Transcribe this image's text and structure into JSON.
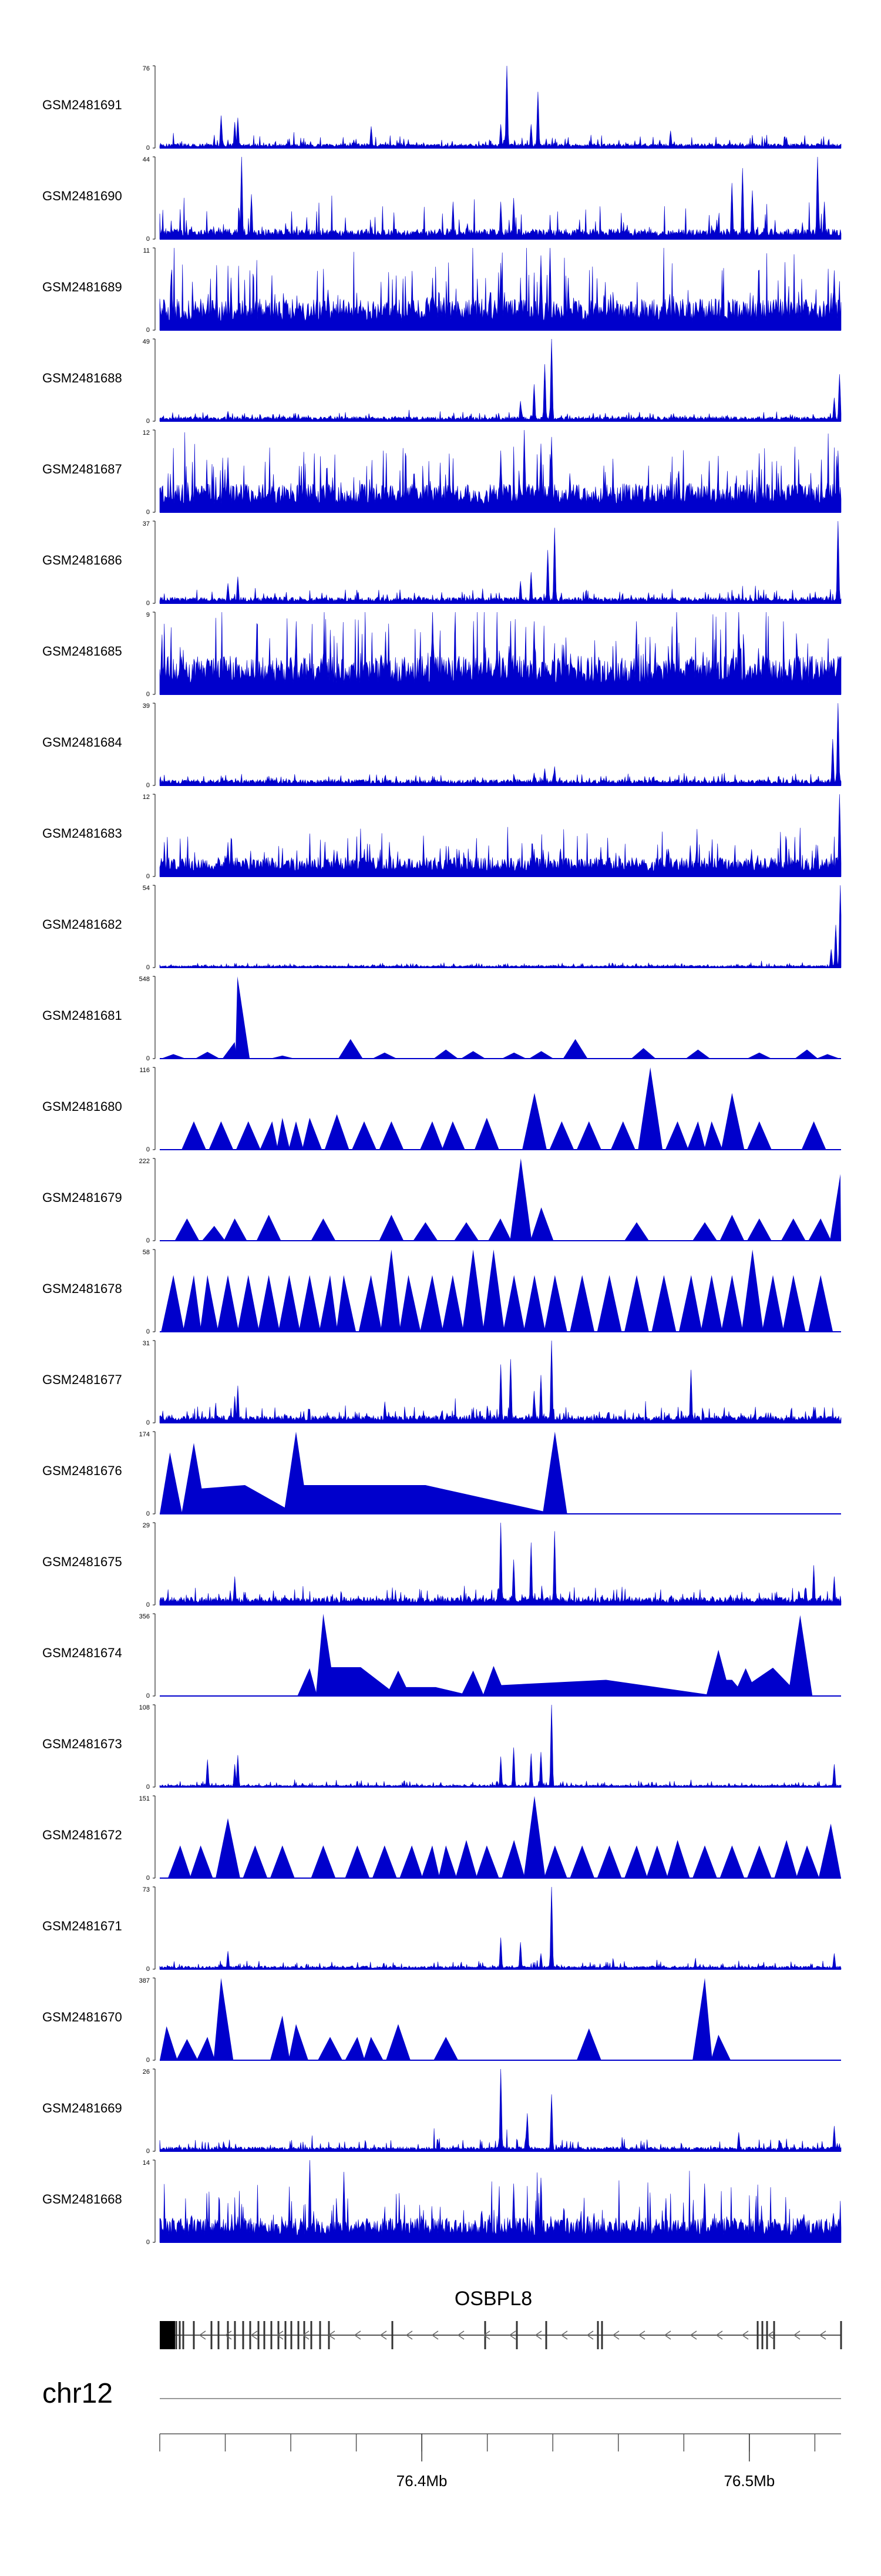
{
  "chart_data": {
    "type": "area",
    "genome": {
      "chromosome": "chr12",
      "gene": "OSBPL8",
      "axis_ticks": [
        "76.4Mb",
        "76.5Mb"
      ],
      "tick_values_mb": [
        76.4,
        76.5
      ],
      "x_range_mb": [
        76.32,
        76.528
      ]
    },
    "accent_color": "#0000cc",
    "tracks": [
      {
        "name": "GSM2481691",
        "ymax": 76,
        "style": "dense",
        "baseline": 3,
        "noise": 8,
        "peaks": [
          [
            0.09,
            30
          ],
          [
            0.11,
            24
          ],
          [
            0.115,
            28
          ],
          [
            0.31,
            20
          ],
          [
            0.5,
            22
          ],
          [
            0.545,
            22
          ],
          [
            0.51,
            76
          ],
          [
            0.555,
            52
          ],
          [
            0.75,
            16
          ],
          [
            0.92,
            10
          ]
        ]
      },
      {
        "name": "GSM2481690",
        "ymax": 44,
        "style": "spiky",
        "baseline": 4,
        "noise": 14,
        "peaks": [
          [
            0.12,
            44
          ],
          [
            0.135,
            24
          ],
          [
            0.43,
            20
          ],
          [
            0.5,
            20
          ],
          [
            0.52,
            22
          ],
          [
            0.84,
            30
          ],
          [
            0.855,
            38
          ],
          [
            0.87,
            26
          ],
          [
            0.965,
            44
          ],
          [
            0.975,
            20
          ]
        ]
      },
      {
        "name": "GSM2481689",
        "ymax": 11,
        "style": "dense",
        "baseline": 3,
        "noise": 6,
        "peaks": [
          [
            0.5,
            9
          ],
          [
            0.56,
            10
          ],
          [
            0.573,
            11
          ],
          [
            0.6,
            7
          ],
          [
            0.4,
            7
          ],
          [
            0.99,
            8
          ]
        ]
      },
      {
        "name": "GSM2481688",
        "ymax": 49,
        "style": "dense",
        "baseline": 2,
        "noise": 3,
        "peaks": [
          [
            0.1,
            6
          ],
          [
            0.53,
            12
          ],
          [
            0.55,
            22
          ],
          [
            0.565,
            34
          ],
          [
            0.575,
            49
          ],
          [
            0.998,
            28
          ],
          [
            0.99,
            14
          ]
        ]
      },
      {
        "name": "GSM2481687",
        "ymax": 12,
        "style": "dense",
        "baseline": 3,
        "noise": 6,
        "peaks": [
          [
            0.1,
            8
          ],
          [
            0.5,
            9
          ],
          [
            0.535,
            12
          ],
          [
            0.56,
            10
          ],
          [
            0.575,
            11
          ],
          [
            0.995,
            9
          ]
        ]
      },
      {
        "name": "GSM2481686",
        "ymax": 37,
        "style": "dense",
        "baseline": 2,
        "noise": 4,
        "peaks": [
          [
            0.1,
            9
          ],
          [
            0.115,
            12
          ],
          [
            0.53,
            10
          ],
          [
            0.545,
            14
          ],
          [
            0.57,
            24
          ],
          [
            0.58,
            34
          ],
          [
            0.996,
            37
          ]
        ]
      },
      {
        "name": "GSM2481685",
        "ymax": 9,
        "style": "dense",
        "baseline": 3,
        "noise": 6,
        "peaks": [
          [
            0.2,
            8
          ],
          [
            0.4,
            9
          ],
          [
            0.55,
            8
          ],
          [
            0.7,
            8
          ],
          [
            0.85,
            9
          ]
        ]
      },
      {
        "name": "GSM2481684",
        "ymax": 39,
        "style": "dense",
        "baseline": 2,
        "noise": 3,
        "peaks": [
          [
            0.55,
            6
          ],
          [
            0.565,
            8
          ],
          [
            0.58,
            9
          ],
          [
            0.995,
            39
          ],
          [
            0.988,
            22
          ]
        ]
      },
      {
        "name": "GSM2481683",
        "ymax": 12,
        "style": "dense",
        "baseline": 2,
        "noise": 4,
        "peaks": [
          [
            0.1,
            5
          ],
          [
            0.3,
            4
          ],
          [
            0.55,
            4
          ],
          [
            0.998,
            12
          ]
        ]
      },
      {
        "name": "GSM2481682",
        "ymax": 54,
        "style": "dense",
        "baseline": 1,
        "noise": 2,
        "peaks": [
          [
            0.999,
            54
          ],
          [
            0.992,
            28
          ],
          [
            0.985,
            12
          ]
        ]
      },
      {
        "name": "GSM2481681",
        "ymax": 548,
        "style": "tri",
        "baseline": 0,
        "noise": 0,
        "peaks": [
          [
            0.02,
            30
          ],
          [
            0.07,
            45
          ],
          [
            0.11,
            110
          ],
          [
            0.114,
            548
          ],
          [
            0.18,
            20
          ],
          [
            0.28,
            130
          ],
          [
            0.33,
            40
          ],
          [
            0.42,
            60
          ],
          [
            0.46,
            50
          ],
          [
            0.52,
            40
          ],
          [
            0.56,
            50
          ],
          [
            0.61,
            130
          ],
          [
            0.71,
            70
          ],
          [
            0.79,
            60
          ],
          [
            0.88,
            40
          ],
          [
            0.95,
            60
          ],
          [
            0.98,
            30
          ]
        ]
      },
      {
        "name": "GSM2481680",
        "ymax": 116,
        "style": "tri",
        "baseline": 0,
        "noise": 0,
        "peaks": [
          [
            0.05,
            40
          ],
          [
            0.09,
            40
          ],
          [
            0.13,
            40
          ],
          [
            0.165,
            40
          ],
          [
            0.18,
            45
          ],
          [
            0.2,
            40
          ],
          [
            0.22,
            45
          ],
          [
            0.26,
            50
          ],
          [
            0.3,
            40
          ],
          [
            0.34,
            40
          ],
          [
            0.4,
            40
          ],
          [
            0.43,
            40
          ],
          [
            0.48,
            45
          ],
          [
            0.55,
            80
          ],
          [
            0.59,
            40
          ],
          [
            0.63,
            40
          ],
          [
            0.68,
            40
          ],
          [
            0.72,
            116
          ],
          [
            0.76,
            40
          ],
          [
            0.79,
            40
          ],
          [
            0.81,
            40
          ],
          [
            0.84,
            80
          ],
          [
            0.88,
            40
          ],
          [
            0.96,
            40
          ]
        ]
      },
      {
        "name": "GSM2481679",
        "ymax": 222,
        "style": "tri",
        "baseline": 0,
        "noise": 0,
        "peaks": [
          [
            0.04,
            60
          ],
          [
            0.08,
            40
          ],
          [
            0.11,
            60
          ],
          [
            0.16,
            70
          ],
          [
            0.24,
            60
          ],
          [
            0.34,
            70
          ],
          [
            0.39,
            50
          ],
          [
            0.45,
            50
          ],
          [
            0.5,
            60
          ],
          [
            0.53,
            222
          ],
          [
            0.56,
            90
          ],
          [
            0.7,
            50
          ],
          [
            0.8,
            50
          ],
          [
            0.84,
            70
          ],
          [
            0.88,
            60
          ],
          [
            0.93,
            60
          ],
          [
            0.97,
            60
          ],
          [
            0.999,
            180
          ]
        ]
      },
      {
        "name": "GSM2481678",
        "ymax": 58,
        "style": "tri",
        "baseline": 0,
        "noise": 0,
        "peaks": [
          [
            0.02,
            40
          ],
          [
            0.05,
            40
          ],
          [
            0.07,
            40
          ],
          [
            0.1,
            40
          ],
          [
            0.13,
            40
          ],
          [
            0.16,
            40
          ],
          [
            0.19,
            40
          ],
          [
            0.22,
            40
          ],
          [
            0.25,
            40
          ],
          [
            0.27,
            40
          ],
          [
            0.31,
            40
          ],
          [
            0.34,
            58
          ],
          [
            0.365,
            40
          ],
          [
            0.4,
            40
          ],
          [
            0.43,
            40
          ],
          [
            0.46,
            58
          ],
          [
            0.49,
            58
          ],
          [
            0.52,
            40
          ],
          [
            0.55,
            40
          ],
          [
            0.58,
            40
          ],
          [
            0.62,
            40
          ],
          [
            0.66,
            40
          ],
          [
            0.7,
            40
          ],
          [
            0.74,
            40
          ],
          [
            0.78,
            40
          ],
          [
            0.81,
            40
          ],
          [
            0.84,
            40
          ],
          [
            0.87,
            58
          ],
          [
            0.9,
            40
          ],
          [
            0.93,
            40
          ],
          [
            0.97,
            40
          ]
        ]
      },
      {
        "name": "GSM2481677",
        "ymax": 31,
        "style": "dense",
        "baseline": 2,
        "noise": 4,
        "peaks": [
          [
            0.11,
            10
          ],
          [
            0.115,
            14
          ],
          [
            0.33,
            8
          ],
          [
            0.5,
            22
          ],
          [
            0.515,
            24
          ],
          [
            0.55,
            12
          ],
          [
            0.575,
            31
          ],
          [
            0.56,
            18
          ],
          [
            0.78,
            20
          ],
          [
            0.96,
            6
          ]
        ]
      },
      {
        "name": "GSM2481676",
        "ymax": 174,
        "style": "tri",
        "baseline": 0,
        "noise": 0,
        "peaks": [
          [
            0.015,
            130
          ],
          [
            0.05,
            150
          ],
          [
            0.2,
            174
          ],
          [
            0.58,
            174
          ]
        ]
      },
      {
        "name": "GSM2481675",
        "ymax": 29,
        "style": "dense",
        "baseline": 2,
        "noise": 4,
        "peaks": [
          [
            0.11,
            10
          ],
          [
            0.5,
            29
          ],
          [
            0.52,
            16
          ],
          [
            0.545,
            22
          ],
          [
            0.58,
            26
          ],
          [
            0.96,
            14
          ],
          [
            0.99,
            10
          ]
        ]
      },
      {
        "name": "GSM2481674",
        "ymax": 356,
        "style": "tri",
        "baseline": 0,
        "noise": 0,
        "peaks": [
          [
            0.22,
            120
          ],
          [
            0.24,
            356
          ],
          [
            0.35,
            110
          ],
          [
            0.46,
            110
          ],
          [
            0.49,
            130
          ],
          [
            0.82,
            200
          ],
          [
            0.86,
            120
          ],
          [
            0.94,
            350
          ]
        ]
      },
      {
        "name": "GSM2481673",
        "ymax": 108,
        "style": "dense",
        "baseline": 2,
        "noise": 6,
        "peaks": [
          [
            0.07,
            36
          ],
          [
            0.11,
            30
          ],
          [
            0.115,
            42
          ],
          [
            0.5,
            40
          ],
          [
            0.52,
            52
          ],
          [
            0.545,
            44
          ],
          [
            0.56,
            46
          ],
          [
            0.575,
            108
          ],
          [
            0.99,
            30
          ]
        ]
      },
      {
        "name": "GSM2481672",
        "ymax": 151,
        "style": "tri",
        "baseline": 0,
        "noise": 0,
        "peaks": [
          [
            0.03,
            60
          ],
          [
            0.06,
            60
          ],
          [
            0.1,
            110
          ],
          [
            0.14,
            60
          ],
          [
            0.18,
            60
          ],
          [
            0.24,
            60
          ],
          [
            0.29,
            60
          ],
          [
            0.33,
            60
          ],
          [
            0.37,
            60
          ],
          [
            0.4,
            60
          ],
          [
            0.42,
            60
          ],
          [
            0.45,
            70
          ],
          [
            0.48,
            60
          ],
          [
            0.52,
            70
          ],
          [
            0.55,
            151
          ],
          [
            0.58,
            60
          ],
          [
            0.62,
            60
          ],
          [
            0.66,
            60
          ],
          [
            0.7,
            60
          ],
          [
            0.73,
            60
          ],
          [
            0.76,
            70
          ],
          [
            0.8,
            60
          ],
          [
            0.84,
            60
          ],
          [
            0.88,
            60
          ],
          [
            0.92,
            70
          ],
          [
            0.95,
            60
          ],
          [
            0.985,
            100
          ]
        ]
      },
      {
        "name": "GSM2481671",
        "ymax": 73,
        "style": "dense",
        "baseline": 2,
        "noise": 5,
        "peaks": [
          [
            0.1,
            16
          ],
          [
            0.5,
            28
          ],
          [
            0.53,
            24
          ],
          [
            0.575,
            73
          ],
          [
            0.56,
            14
          ],
          [
            0.99,
            14
          ]
        ]
      },
      {
        "name": "GSM2481670",
        "ymax": 387,
        "style": "tri",
        "baseline": 0,
        "noise": 0,
        "peaks": [
          [
            0.01,
            160
          ],
          [
            0.04,
            100
          ],
          [
            0.07,
            110
          ],
          [
            0.09,
            387
          ],
          [
            0.18,
            210
          ],
          [
            0.2,
            170
          ],
          [
            0.25,
            110
          ],
          [
            0.29,
            110
          ],
          [
            0.31,
            110
          ],
          [
            0.35,
            170
          ],
          [
            0.42,
            110
          ],
          [
            0.63,
            150
          ],
          [
            0.8,
            387
          ],
          [
            0.82,
            120
          ]
        ]
      },
      {
        "name": "GSM2481669",
        "ymax": 26,
        "style": "dense",
        "baseline": 1,
        "noise": 3,
        "peaks": [
          [
            0.5,
            26
          ],
          [
            0.54,
            12
          ],
          [
            0.575,
            18
          ],
          [
            0.85,
            6
          ],
          [
            0.99,
            8
          ]
        ]
      },
      {
        "name": "GSM2481668",
        "ymax": 14,
        "style": "dense",
        "baseline": 3,
        "noise": 7,
        "peaks": [
          [
            0.22,
            14
          ],
          [
            0.27,
            12
          ],
          [
            0.52,
            10
          ],
          [
            0.56,
            11
          ],
          [
            0.8,
            10
          ]
        ]
      }
    ]
  }
}
